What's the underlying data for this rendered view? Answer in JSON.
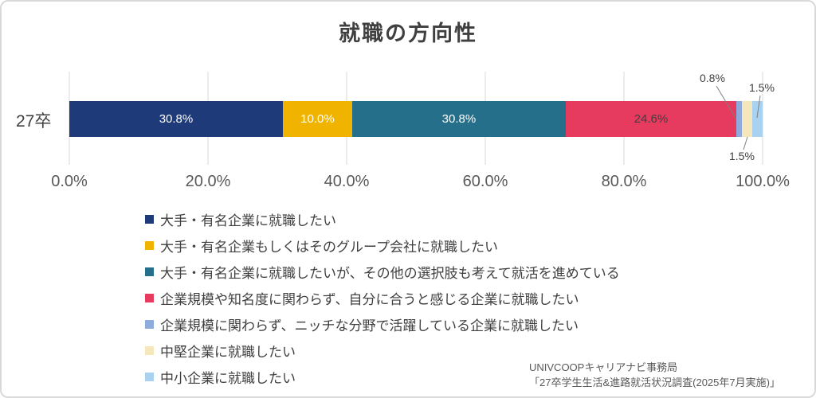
{
  "chart": {
    "title": "就職の方向性"
  },
  "chart_data": {
    "type": "bar",
    "orientation": "horizontal",
    "stacked": true,
    "title": "就職の方向性",
    "categories": [
      "27卒"
    ],
    "xlim": [
      0,
      100
    ],
    "x_tick_labels": [
      "0.0%",
      "20.0%",
      "40.0%",
      "60.0%",
      "80.0%",
      "100.0%"
    ],
    "grid": "vertical-lines",
    "legend_position": "bottom-left",
    "series": [
      {
        "name": "大手・有名企業に就職したい",
        "values": [
          30.8
        ],
        "data_label": "30.8%",
        "color": "#1e3a78"
      },
      {
        "name": "大手・有名企業もしくはそのグループ会社に就職したい",
        "values": [
          10.0
        ],
        "data_label": "10.0%",
        "color": "#f0b400"
      },
      {
        "name": "大手・有名企業に就職したいが、その他の選択肢も考えて就活を進めている",
        "values": [
          30.8
        ],
        "data_label": "30.8%",
        "color": "#256f8a"
      },
      {
        "name": "企業規模や知名度に関わらず、自分に合うと感じる企業に就職したい",
        "values": [
          24.6
        ],
        "data_label": "24.6%",
        "color": "#e73a5f"
      },
      {
        "name": "企業規模に関わらず、ニッチな分野で活躍している企業に就職したい",
        "values": [
          0.8
        ],
        "data_label": "0.8%",
        "color": "#8faadc"
      },
      {
        "name": "中堅企業に就職したい",
        "values": [
          1.5
        ],
        "data_label": "1.5%",
        "color": "#f5e7bb"
      },
      {
        "name": "中小企業に就職したい",
        "values": [
          1.5
        ],
        "data_label": "1.5%",
        "color": "#a8d2f0"
      }
    ],
    "source_lines": [
      "UNIVCOOPキャリアナビ事務局",
      "「27卒学生生活&進路就活状況調査(2025年7月実施)」"
    ]
  }
}
